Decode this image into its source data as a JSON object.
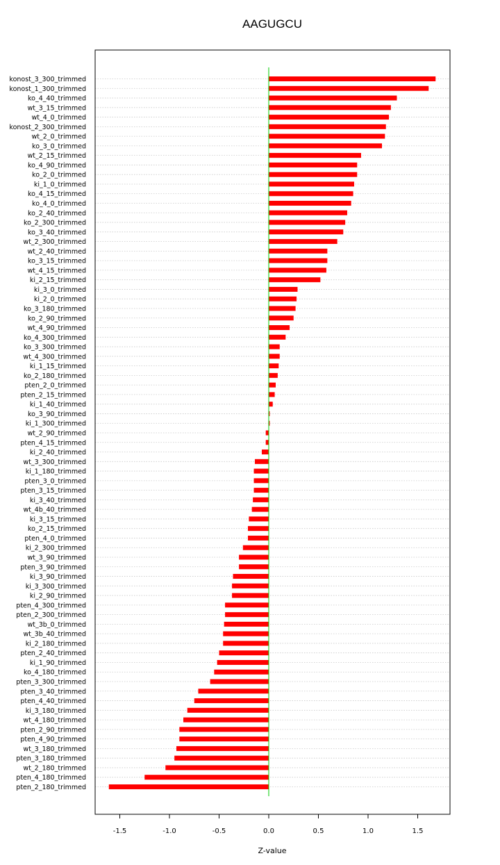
{
  "chart_data": {
    "type": "bar",
    "orientation": "horizontal",
    "title": "AAGUGCU",
    "xlabel": "Z-value",
    "ylabel": "",
    "xlim": [
      -1.75,
      1.8
    ],
    "xticks": [
      -1.5,
      -1.0,
      -0.5,
      0.0,
      0.5,
      1.0,
      1.5
    ],
    "xtick_labels": [
      "-1.5",
      "-1.0",
      "-0.5",
      "0.0",
      "0.5",
      "1.0",
      "1.5"
    ],
    "grid": "horizontal dotted",
    "reference_line": 0,
    "bar_color": "#ff0000",
    "reference_line_color": "#00cc00",
    "categories": [
      "konost_3_300_trimmed",
      "konost_1_300_trimmed",
      "ko_4_40_trimmed",
      "wt_3_15_trimmed",
      "wt_4_0_trimmed",
      "konost_2_300_trimmed",
      "wt_2_0_trimmed",
      "ko_3_0_trimmed",
      "wt_2_15_trimmed",
      "ko_4_90_trimmed",
      "ko_2_0_trimmed",
      "ki_1_0_trimmed",
      "ko_4_15_trimmed",
      "ko_4_0_trimmed",
      "ko_2_40_trimmed",
      "ko_2_300_trimmed",
      "ko_3_40_trimmed",
      "wt_2_300_trimmed",
      "wt_2_40_trimmed",
      "ko_3_15_trimmed",
      "wt_4_15_trimmed",
      "ki_2_15_trimmed",
      "ki_3_0_trimmed",
      "ki_2_0_trimmed",
      "ko_3_180_trimmed",
      "ko_2_90_trimmed",
      "wt_4_90_trimmed",
      "ko_4_300_trimmed",
      "ko_3_300_trimmed",
      "wt_4_300_trimmed",
      "ki_1_15_trimmed",
      "ko_2_180_trimmed",
      "pten_2_0_trimmed",
      "pten_2_15_trimmed",
      "ki_1_40_trimmed",
      "ko_3_90_trimmed",
      "ki_1_300_trimmed",
      "wt_2_90_trimmed",
      "pten_4_15_trimmed",
      "ki_2_40_trimmed",
      "wt_3_300_trimmed",
      "ki_1_180_trimmed",
      "pten_3_0_trimmed",
      "pten_3_15_trimmed",
      "ki_3_40_trimmed",
      "wt_4b_40_trimmed",
      "ki_3_15_trimmed",
      "ko_2_15_trimmed",
      "pten_4_0_trimmed",
      "ki_2_300_trimmed",
      "wt_3_90_trimmed",
      "pten_3_90_trimmed",
      "ki_3_90_trimmed",
      "ki_3_300_trimmed",
      "ki_2_90_trimmed",
      "pten_4_300_trimmed",
      "pten_2_300_trimmed",
      "wt_3b_0_trimmed",
      "wt_3b_40_trimmed",
      "ki_2_180_trimmed",
      "pten_2_40_trimmed",
      "ki_1_90_trimmed",
      "ko_4_180_trimmed",
      "pten_3_300_trimmed",
      "pten_3_40_trimmed",
      "pten_4_40_trimmed",
      "ki_3_180_trimmed",
      "wt_4_180_trimmed",
      "pten_2_90_trimmed",
      "pten_4_90_trimmed",
      "wt_3_180_trimmed",
      "pten_3_180_trimmed",
      "wt_2_180_trimmed",
      "pten_4_180_trimmed",
      "pten_2_180_trimmed"
    ],
    "values": [
      1.68,
      1.61,
      1.29,
      1.23,
      1.21,
      1.18,
      1.17,
      1.14,
      0.93,
      0.89,
      0.89,
      0.86,
      0.85,
      0.83,
      0.79,
      0.77,
      0.75,
      0.69,
      0.59,
      0.59,
      0.58,
      0.52,
      0.29,
      0.28,
      0.27,
      0.25,
      0.21,
      0.17,
      0.11,
      0.11,
      0.1,
      0.09,
      0.07,
      0.06,
      0.04,
      0.01,
      0.01,
      -0.03,
      -0.03,
      -0.07,
      -0.14,
      -0.15,
      -0.15,
      -0.15,
      -0.16,
      -0.17,
      -0.2,
      -0.21,
      -0.21,
      -0.26,
      -0.3,
      -0.3,
      -0.36,
      -0.37,
      -0.37,
      -0.44,
      -0.44,
      -0.45,
      -0.46,
      -0.46,
      -0.5,
      -0.52,
      -0.55,
      -0.59,
      -0.71,
      -0.75,
      -0.82,
      -0.86,
      -0.9,
      -0.9,
      -0.93,
      -0.95,
      -1.04,
      -1.25,
      -1.61
    ]
  }
}
